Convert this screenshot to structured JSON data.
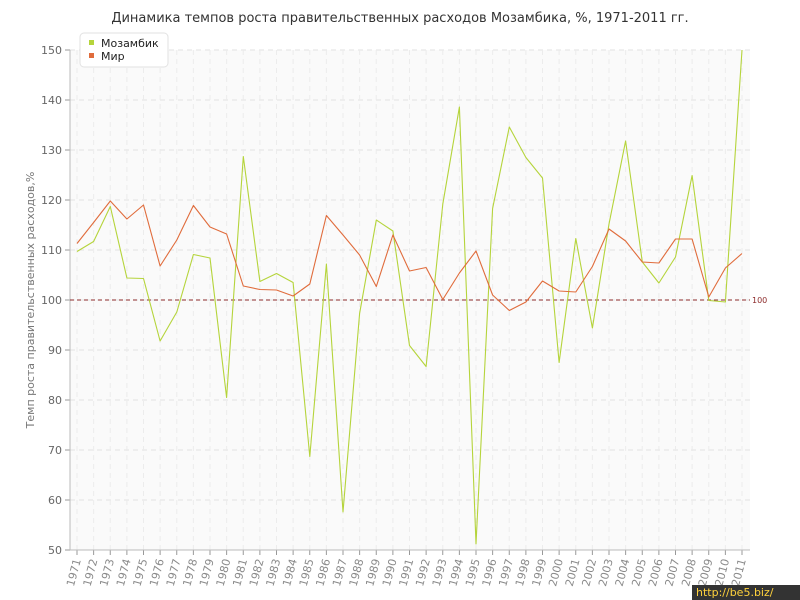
{
  "watermark": "http://be5.biz/",
  "chart_data": {
    "type": "line",
    "title": "Динамика темпов роста правительственных расходов Мозамбика, %, 1971-2011 гг.",
    "xlabel": "",
    "ylabel": "Темп роста правительственных расходов,%",
    "ylim": [
      50,
      150
    ],
    "yticks": [
      "50",
      "60",
      "70",
      "80",
      "90",
      "100",
      "110",
      "120",
      "130",
      "140",
      "150"
    ],
    "grid": true,
    "legend_position": "top-left",
    "categories": [
      "1971",
      "1972",
      "1973",
      "1974",
      "1975",
      "1976",
      "1977",
      "1978",
      "1979",
      "1980",
      "1981",
      "1982",
      "1983",
      "1984",
      "1985",
      "1986",
      "1987",
      "1988",
      "1989",
      "1990",
      "1991",
      "1992",
      "1993",
      "1994",
      "1995",
      "1996",
      "1997",
      "1998",
      "1999",
      "2000",
      "2001",
      "2002",
      "2003",
      "2004",
      "2005",
      "2006",
      "2007",
      "2008",
      "2009",
      "2010",
      "2011"
    ],
    "series": [
      {
        "name": "Мозамбик",
        "color": "#b5d43b",
        "values": [
          109.7,
          111.7,
          118.7,
          104.4,
          104.3,
          91.8,
          97.6,
          109.1,
          108.4,
          80.5,
          128.7,
          103.7,
          105.3,
          103.5,
          68.7,
          107.2,
          57.6,
          97.3,
          116.0,
          113.8,
          90.9,
          86.7,
          119.2,
          138.6,
          51.2,
          118.3,
          134.6,
          128.5,
          124.4,
          87.5,
          112.3,
          94.4,
          115.2,
          131.8,
          107.6,
          103.4,
          108.6,
          124.9,
          99.9,
          99.6,
          150.0
        ]
      },
      {
        "name": "Мир",
        "color": "#e06c3c",
        "values": [
          111.3,
          115.5,
          119.8,
          116.2,
          119.0,
          106.8,
          112.0,
          118.9,
          114.6,
          113.2,
          102.8,
          102.1,
          102.0,
          100.8,
          103.2,
          116.9,
          113.0,
          109.0,
          102.7,
          113.0,
          105.8,
          106.5,
          100.1,
          105.4,
          109.8,
          101.0,
          97.9,
          99.6,
          103.8,
          101.8,
          101.6,
          106.7,
          114.2,
          111.8,
          107.6,
          107.4,
          112.2,
          112.2,
          100.6,
          106.4,
          109.3
        ]
      }
    ],
    "reference_line": {
      "value": 100,
      "label": "100",
      "color": "#8c2a2a"
    }
  }
}
